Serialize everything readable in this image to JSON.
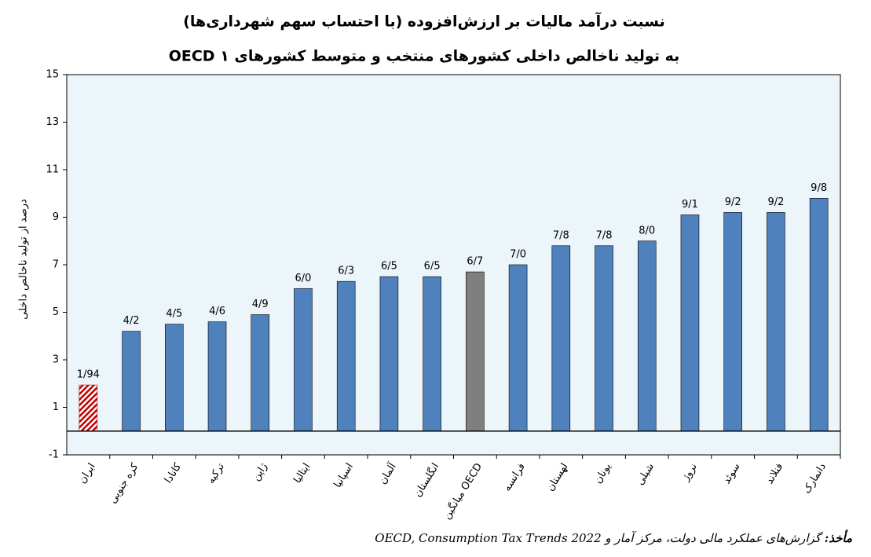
{
  "chart_data": {
    "type": "bar",
    "title": "نسبت درآمد مالیات بر ارزش‌افزوده (با احتساب سهم شهرداری‌ها)",
    "subtitle": "به تولید ناخالص داخلی کشورهای منتخب و متوسط کشورهای OECD ۱",
    "y_label": "درصد از تولید ناخالص داخلی",
    "categories": [
      "ایران",
      "کره جنوبی",
      "کانادا",
      "ترکیه",
      "ژاپن",
      "ایتالیا",
      "اسپانیا",
      "آلمان",
      "انگلستان",
      "میانگین OECD",
      "فرانسه",
      "لهستان",
      "یونان",
      "شیلی",
      "نروژ",
      "سوئد",
      "فنلاند",
      "دانمارک"
    ],
    "values": [
      1.94,
      4.2,
      4.5,
      4.6,
      4.9,
      6.0,
      6.3,
      6.5,
      6.5,
      6.7,
      7.0,
      7.8,
      7.8,
      8.0,
      9.1,
      9.2,
      9.2,
      9.8
    ],
    "value_labels": [
      "1/94",
      "4/2",
      "4/5",
      "4/6",
      "4/9",
      "6/0",
      "6/3",
      "6/5",
      "6/5",
      "6/7",
      "7/0",
      "7/8",
      "7/8",
      "8/0",
      "9/1",
      "9/2",
      "9/2",
      "9/8"
    ],
    "colors": [
      "#c00000",
      "#4f81bd",
      "#4f81bd",
      "#4f81bd",
      "#4f81bd",
      "#4f81bd",
      "#4f81bd",
      "#4f81bd",
      "#4f81bd",
      "#7f7f7f",
      "#4f81bd",
      "#4f81bd",
      "#4f81bd",
      "#4f81bd",
      "#4f81bd",
      "#4f81bd",
      "#4f81bd",
      "#4f81bd"
    ],
    "hatched": [
      true,
      false,
      false,
      false,
      false,
      false,
      false,
      false,
      false,
      false,
      false,
      false,
      false,
      false,
      false,
      false,
      false,
      false
    ],
    "ylim": [
      -1,
      15
    ],
    "yticks": [
      -1,
      1,
      3,
      5,
      7,
      9,
      11,
      13,
      15
    ],
    "plot_background": "#ebf5fa",
    "source_label": "مأخذ:",
    "source": "گزارش‌های عملکرد مالی دولت، مرکز آمار و OECD, Consumption Tax Trends 2022"
  }
}
